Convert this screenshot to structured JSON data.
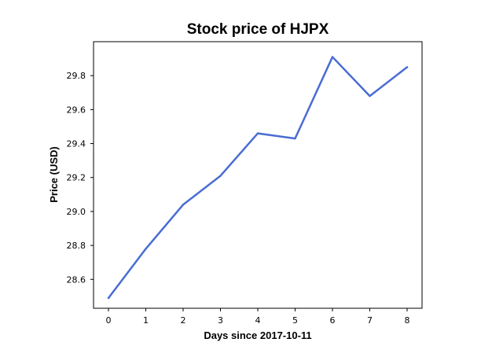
{
  "chart_data": {
    "type": "line",
    "title": "Stock price of HJPX",
    "xlabel": "Days since 2017-10-11",
    "ylabel": "Price (USD)",
    "x": [
      0,
      1,
      2,
      3,
      4,
      5,
      6,
      7,
      8
    ],
    "series": [
      {
        "values": [
          28.49,
          28.78,
          29.04,
          29.21,
          29.46,
          29.43,
          29.91,
          29.68,
          29.85
        ]
      }
    ],
    "xlim": [
      -0.4,
      8.4
    ],
    "ylim": [
      28.43,
      30.0
    ],
    "xticks": [
      0,
      1,
      2,
      3,
      4,
      5,
      6,
      7,
      8
    ],
    "yticks": [
      28.6,
      28.8,
      29.0,
      29.2,
      29.4,
      29.6,
      29.8
    ],
    "ytick_labels": [
      "28.6",
      "28.8",
      "29.0",
      "29.2",
      "29.4",
      "29.6",
      "29.8"
    ],
    "grid": false,
    "line_color": "#4a6cd4"
  }
}
